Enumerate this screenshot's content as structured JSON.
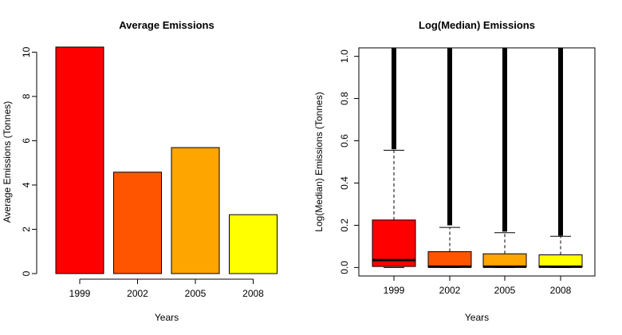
{
  "chart_data": [
    {
      "type": "bar",
      "title": "Average Emissions",
      "xlabel": "Years",
      "ylabel": "Average Emissions (Tonnes)",
      "categories": [
        "1999",
        "2002",
        "2005",
        "2008"
      ],
      "values": [
        10.23,
        4.58,
        5.69,
        2.66
      ],
      "colors": [
        "#ff0000",
        "#ff5500",
        "#ffa500",
        "#ffff00"
      ],
      "yticks": [
        0,
        2,
        4,
        6,
        8,
        10
      ],
      "ylim": [
        0,
        10.23
      ],
      "grid": false
    },
    {
      "type": "box",
      "title": "Log(Median) Emissions",
      "xlabel": "Years",
      "ylabel": "Log(Median) Emissions (Tonnes)",
      "categories": [
        "1999",
        "2002",
        "2005",
        "2008"
      ],
      "colors": [
        "#ff0000",
        "#ff5500",
        "#ffa500",
        "#ffff00"
      ],
      "boxes": [
        {
          "lower_whisker": 0.0,
          "q1": 0.005,
          "median": 0.035,
          "q3": 0.225,
          "upper_whisker": 0.555,
          "outliers_from": 0.56
        },
        {
          "lower_whisker": 0.0,
          "q1": 0.002,
          "median": 0.004,
          "q3": 0.075,
          "upper_whisker": 0.19,
          "outliers_from": 0.2
        },
        {
          "lower_whisker": 0.0,
          "q1": 0.002,
          "median": 0.004,
          "q3": 0.065,
          "upper_whisker": 0.165,
          "outliers_from": 0.17
        },
        {
          "lower_whisker": 0.0,
          "q1": 0.002,
          "median": 0.004,
          "q3": 0.06,
          "upper_whisker": 0.148,
          "outliers_from": 0.15
        }
      ],
      "yticks": [
        0.0,
        0.2,
        0.4,
        0.6,
        0.8,
        1.0
      ],
      "ytick_labels": [
        "0.0",
        "0.2",
        "0.4",
        "0.6",
        "0.8",
        "1.0"
      ],
      "ylim": [
        -0.04,
        1.04
      ],
      "grid": false
    }
  ]
}
